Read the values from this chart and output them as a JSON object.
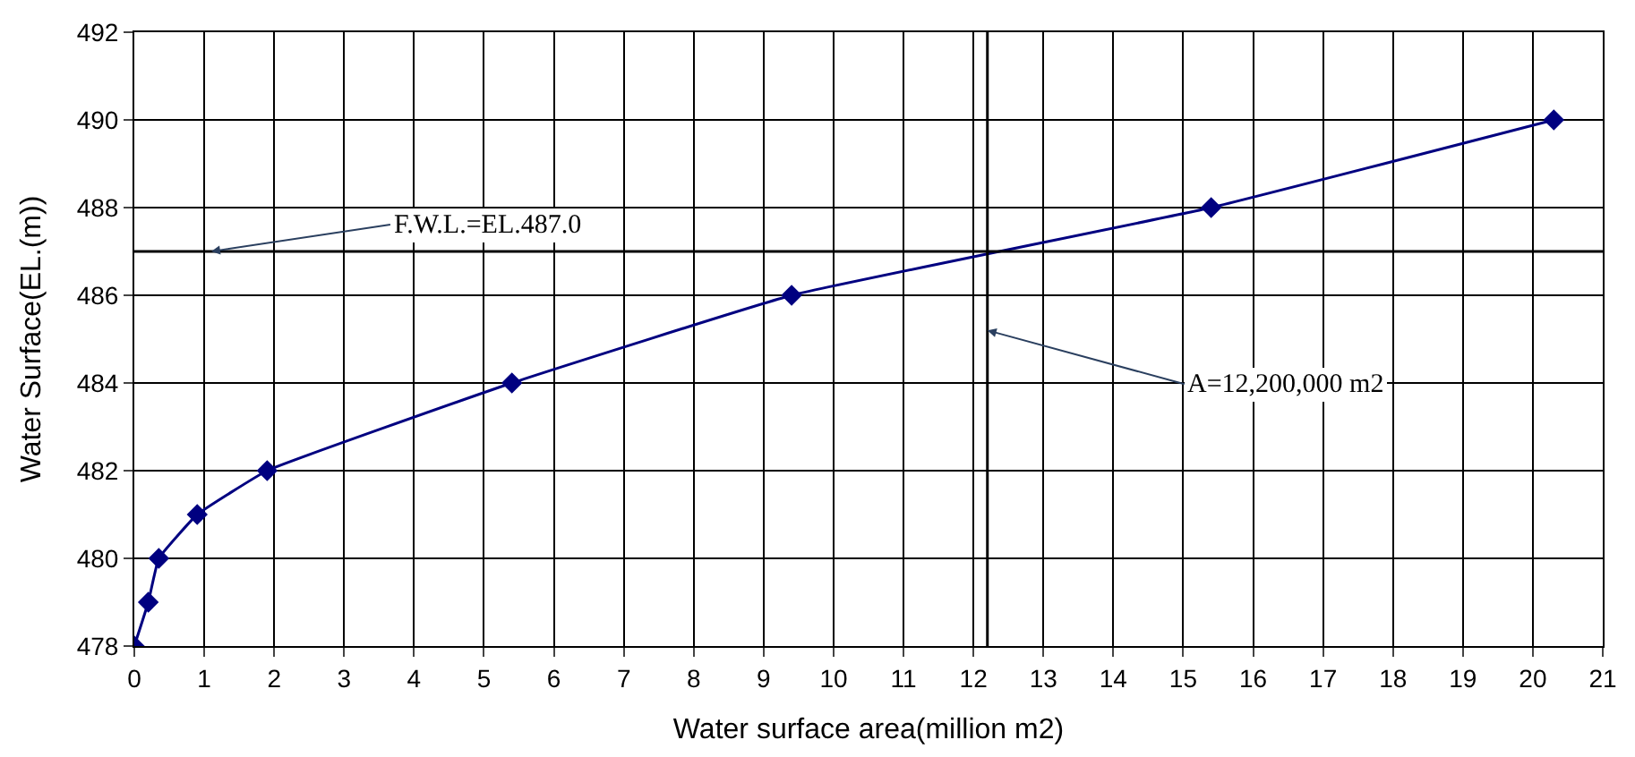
{
  "chart_data": {
    "type": "line",
    "xlabel": "Water surface area(million m2)",
    "ylabel": "Water Surface(EL.(m))",
    "x": [
      0,
      0.2,
      0.35,
      0.9,
      1.9,
      5.4,
      9.4,
      15.4,
      20.3
    ],
    "series": [
      {
        "color": "#000080",
        "values": [
          478,
          479,
          480,
          481,
          482,
          484,
          486,
          488,
          490
        ]
      }
    ],
    "xlim": [
      0,
      21
    ],
    "xticks": [
      0,
      1,
      2,
      3,
      4,
      5,
      6,
      7,
      8,
      9,
      10,
      11,
      12,
      13,
      14,
      15,
      16,
      17,
      18,
      19,
      20,
      21
    ],
    "ylim": [
      478,
      492
    ],
    "yticks": [
      478,
      480,
      482,
      484,
      486,
      488,
      490,
      492
    ],
    "grid": true,
    "marker": "diamond",
    "line_style": "solid",
    "legend": false,
    "ref_lines": [
      {
        "axis": "y",
        "value": 487.0,
        "color": "#000000"
      },
      {
        "axis": "x",
        "value": 12.2,
        "color": "#000000"
      }
    ],
    "annotations": [
      {
        "text": "F.W.L.=EL.487.0",
        "x": 1.1,
        "y": 487.0
      },
      {
        "text": "A=12,200,000 m2",
        "x": 12.2,
        "y": 485.2
      }
    ]
  }
}
